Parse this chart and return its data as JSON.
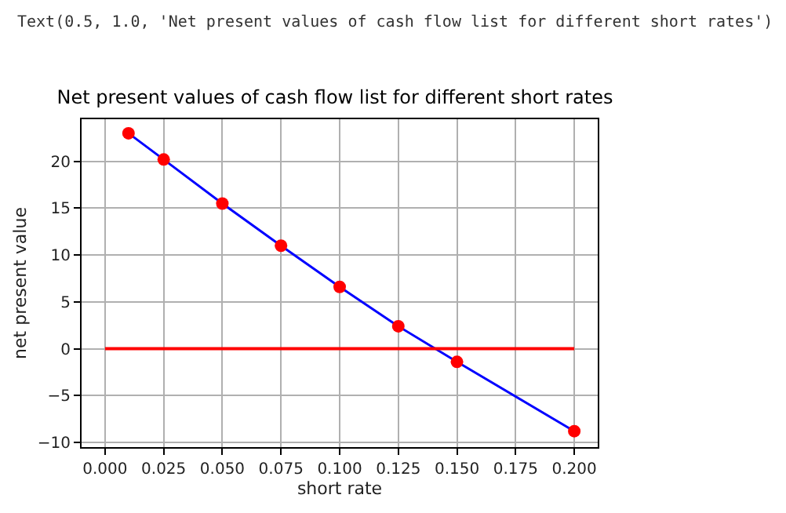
{
  "chart_data": {
    "type": "line",
    "title": "Net present values of cash flow list for different short rates",
    "xlabel": "short rate",
    "ylabel": "net present value",
    "annotations": [
      "Text(0.5, 1.0, 'Net present values of cash flow list for different short rates')"
    ],
    "series": [
      {
        "color": "#0000ff",
        "marker": "none",
        "x": [
          0.01,
          0.025,
          0.05,
          0.075,
          0.1,
          0.125,
          0.15,
          0.2
        ],
        "values": [
          23.0,
          20.2,
          15.5,
          11.0,
          6.6,
          2.4,
          -1.4,
          -8.8
        ]
      },
      {
        "type": "scatter",
        "color": "#ff0000",
        "marker": "circle",
        "x": [
          0.01,
          0.025,
          0.05,
          0.075,
          0.1,
          0.125,
          0.15,
          0.2
        ],
        "values": [
          23.0,
          20.2,
          15.5,
          11.0,
          6.6,
          2.4,
          -1.4,
          -8.8
        ]
      },
      {
        "color": "#ff0000",
        "marker": "none",
        "x": [
          0.0,
          0.2
        ],
        "values": [
          0,
          0
        ]
      }
    ],
    "xlim": [
      -0.01,
      0.21
    ],
    "xticks": [
      {
        "value": 0,
        "label": "0.000"
      },
      {
        "value": 0.025,
        "label": "0.025"
      },
      {
        "value": 0.05,
        "label": "0.050"
      },
      {
        "value": 0.075,
        "label": "0.075"
      },
      {
        "value": 0.1,
        "label": "0.100"
      },
      {
        "value": 0.125,
        "label": "0.125"
      },
      {
        "value": 0.15,
        "label": "0.150"
      },
      {
        "value": 0.175,
        "label": "0.175"
      },
      {
        "value": 0.2,
        "label": "0.200"
      }
    ],
    "ylim": [
      -10.5,
      24.5
    ],
    "yticks": [
      {
        "value": -10,
        "label": "−10"
      },
      {
        "value": -5,
        "label": "−5"
      },
      0,
      5,
      10,
      15,
      20
    ],
    "grid": true,
    "legend": false
  }
}
